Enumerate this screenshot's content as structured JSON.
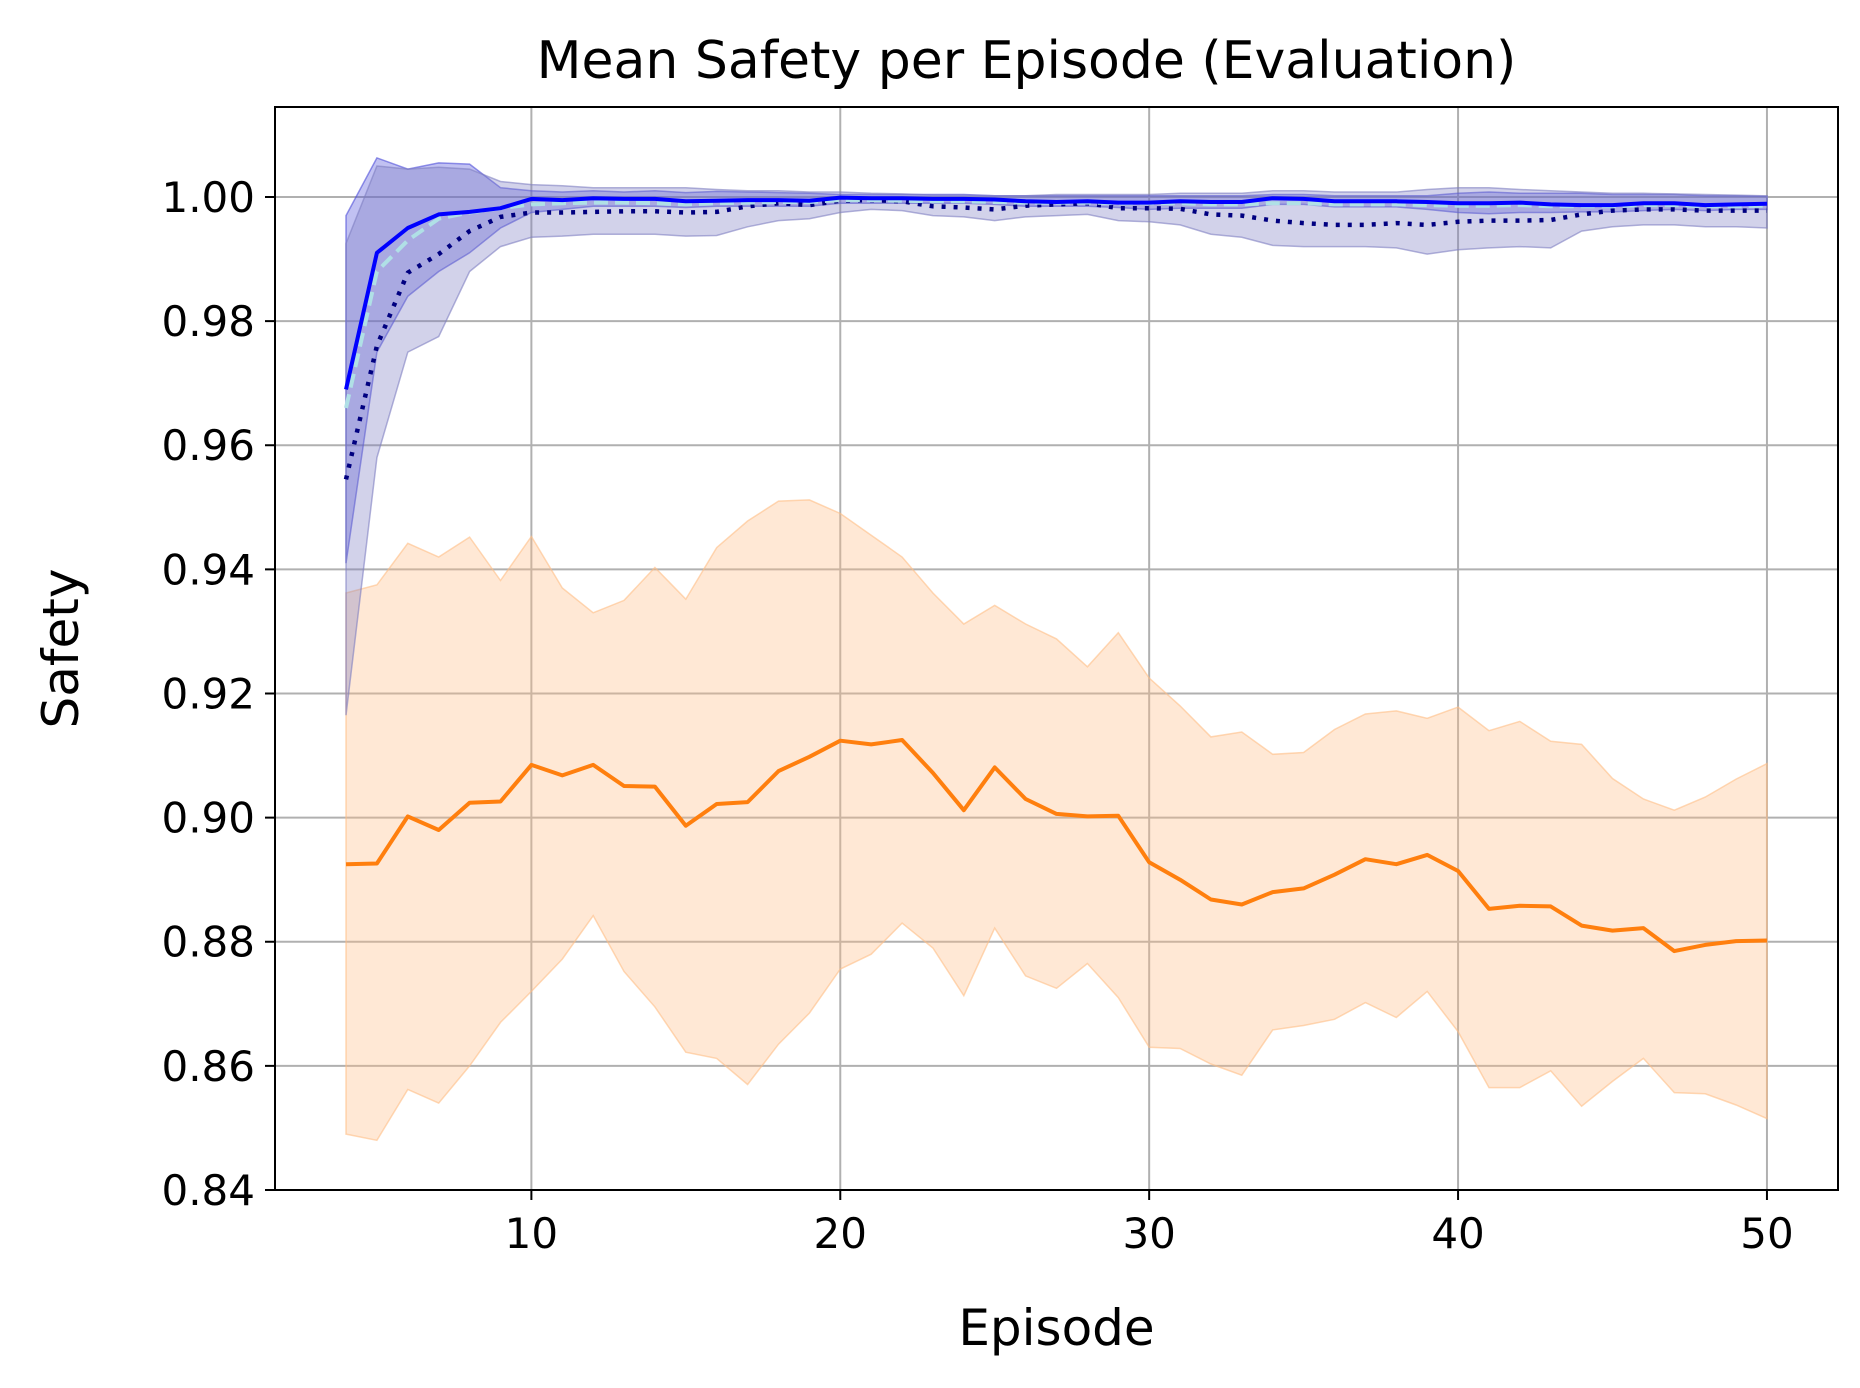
{
  "chart_data": {
    "type": "line",
    "title": "Mean Safety per Episode (Evaluation)",
    "xlabel": "Episode",
    "ylabel": "Safety",
    "xlim": [
      1.7,
      52.3
    ],
    "ylim": [
      0.84,
      1.0145
    ],
    "grid": true,
    "x_ticks": [
      10,
      20,
      30,
      40,
      50
    ],
    "x_tick_labels": [
      "10",
      "20",
      "30",
      "40",
      "50"
    ],
    "y_ticks": [
      0.84,
      0.86,
      0.88,
      0.9,
      0.92,
      0.94,
      0.96,
      0.98,
      1.0
    ],
    "y_tick_labels": [
      "0.84",
      "0.86",
      "0.88",
      "0.90",
      "0.92",
      "0.94",
      "0.96",
      "0.98",
      "1.00"
    ],
    "x": [
      4,
      5,
      6,
      7,
      8,
      9,
      10,
      11,
      12,
      13,
      14,
      15,
      16,
      17,
      18,
      19,
      20,
      21,
      22,
      23,
      24,
      25,
      26,
      27,
      28,
      29,
      30,
      31,
      32,
      33,
      34,
      35,
      36,
      37,
      38,
      39,
      40,
      41,
      42,
      43,
      44,
      45,
      46,
      47,
      48,
      49,
      50
    ],
    "series": [
      {
        "name": "orange",
        "color": "#ff7f0e",
        "band_color": "#ffbe86",
        "style": "solid",
        "values": [
          0.8925,
          0.8926,
          0.9002,
          0.898,
          0.9024,
          0.9026,
          0.9085,
          0.9068,
          0.9085,
          0.9051,
          0.905,
          0.8987,
          0.9022,
          0.9025,
          0.9075,
          0.9098,
          0.9124,
          0.9118,
          0.9125,
          0.9072,
          0.9012,
          0.9081,
          0.903,
          0.9006,
          0.9002,
          0.9003,
          0.8928,
          0.89,
          0.8868,
          0.886,
          0.888,
          0.8886,
          0.8908,
          0.8933,
          0.8925,
          0.894,
          0.8914,
          0.8853,
          0.8858,
          0.8857,
          0.8826,
          0.8818,
          0.8822,
          0.8785,
          0.8795,
          0.8801,
          0.8802
        ],
        "upper": [
          0.9362,
          0.9375,
          0.9442,
          0.942,
          0.9452,
          0.9382,
          0.9453,
          0.937,
          0.933,
          0.935,
          0.9403,
          0.9352,
          0.9435,
          0.9478,
          0.951,
          0.9512,
          0.949,
          0.9455,
          0.942,
          0.9362,
          0.9312,
          0.9342,
          0.9312,
          0.9288,
          0.9243,
          0.9298,
          0.9225,
          0.918,
          0.913,
          0.9138,
          0.9102,
          0.9105,
          0.9142,
          0.9167,
          0.9172,
          0.916,
          0.9178,
          0.914,
          0.9155,
          0.9123,
          0.9118,
          0.9063,
          0.903,
          0.9012,
          0.9033,
          0.9062,
          0.9087
        ],
        "lower": [
          0.849,
          0.848,
          0.8562,
          0.854,
          0.86,
          0.867,
          0.872,
          0.8772,
          0.8842,
          0.8752,
          0.8695,
          0.8622,
          0.8612,
          0.857,
          0.8635,
          0.8685,
          0.8756,
          0.878,
          0.883,
          0.879,
          0.8713,
          0.8822,
          0.8745,
          0.8725,
          0.8765,
          0.871,
          0.863,
          0.8628,
          0.8603,
          0.8585,
          0.8658,
          0.8665,
          0.8675,
          0.8702,
          0.8678,
          0.872,
          0.8655,
          0.8565,
          0.8565,
          0.8592,
          0.8535,
          0.8575,
          0.8612,
          0.8557,
          0.8555,
          0.8537,
          0.8515
        ]
      },
      {
        "name": "blue solid",
        "color": "#0000ff",
        "band_color": "#4d4dd9",
        "style": "solid",
        "values": [
          0.969,
          0.991,
          0.995,
          0.9972,
          0.9976,
          0.9982,
          0.9997,
          0.9995,
          0.9998,
          0.9997,
          0.9997,
          0.9993,
          0.9994,
          0.9995,
          0.9995,
          0.9994,
          0.9999,
          0.9998,
          0.9998,
          0.9997,
          0.9997,
          0.9996,
          0.9993,
          0.9992,
          0.9993,
          0.9991,
          0.9991,
          0.9993,
          0.9992,
          0.9992,
          0.9998,
          0.9997,
          0.9993,
          0.9993,
          0.9993,
          0.9992,
          0.999,
          0.999,
          0.9991,
          0.9988,
          0.9987,
          0.9987,
          0.999,
          0.999,
          0.9987,
          0.9988,
          0.9989
        ],
        "upper": [
          0.997,
          1.0063,
          1.0045,
          1.0055,
          1.0053,
          1.0015,
          1.001,
          1.0008,
          1.001,
          1.0008,
          1.001,
          1.0007,
          1.0009,
          1.0008,
          1.0007,
          1.0006,
          1.0004,
          1.0004,
          1.0004,
          1.0004,
          1.0004,
          1.0002,
          1.0002,
          1.0002,
          1.0002,
          1.0002,
          1.0002,
          1.0002,
          1.0002,
          1.0002,
          1.0004,
          1.0004,
          1.0002,
          1.0002,
          1.0002,
          1.0002,
          1.0006,
          1.0008,
          1.0006,
          1.0006,
          1.0006,
          1.0004,
          1.0004,
          1.0004,
          1.0002,
          1.0002,
          1.0001
        ],
        "lower": [
          0.941,
          0.975,
          0.984,
          0.988,
          0.991,
          0.995,
          0.9975,
          0.998,
          0.9985,
          0.9985,
          0.9985,
          0.9983,
          0.9985,
          0.9985,
          0.9985,
          0.9985,
          0.999,
          0.999,
          0.999,
          0.999,
          0.999,
          0.9988,
          0.9985,
          0.9985,
          0.9985,
          0.9983,
          0.998,
          0.9982,
          0.9982,
          0.9982,
          0.9988,
          0.9988,
          0.9984,
          0.9984,
          0.9984,
          0.998,
          0.9975,
          0.9973,
          0.9975,
          0.9975,
          0.9976,
          0.9976,
          0.9978,
          0.998,
          0.9978,
          0.998,
          0.998
        ]
      },
      {
        "name": "navy dotted",
        "color": "#000080",
        "band_color": "#7f7fc2",
        "style": "dotted",
        "values": [
          0.9545,
          0.976,
          0.9878,
          0.9908,
          0.9945,
          0.9968,
          0.9975,
          0.9975,
          0.9976,
          0.9977,
          0.9977,
          0.9975,
          0.9976,
          0.9985,
          0.999,
          0.9987,
          0.9994,
          0.9995,
          0.9993,
          0.9985,
          0.9983,
          0.998,
          0.9986,
          0.9988,
          0.999,
          0.9982,
          0.9982,
          0.9981,
          0.9972,
          0.997,
          0.9962,
          0.9958,
          0.9955,
          0.9955,
          0.9958,
          0.9955,
          0.996,
          0.9962,
          0.9962,
          0.9963,
          0.9972,
          0.9978,
          0.998,
          0.998,
          0.9978,
          0.9978,
          0.9978
        ],
        "upper": [
          0.9925,
          1.005,
          1.0045,
          1.0048,
          1.0045,
          1.0025,
          1.002,
          1.0018,
          1.0015,
          1.0015,
          1.0015,
          1.0015,
          1.0012,
          1.001,
          1.001,
          1.0008,
          1.0008,
          1.0006,
          1.0005,
          1.0003,
          1.0003,
          1.0002,
          1.0002,
          1.0004,
          1.0004,
          1.0004,
          1.0004,
          1.0006,
          1.0006,
          1.0006,
          1.001,
          1.001,
          1.0008,
          1.0008,
          1.0008,
          1.0012,
          1.0015,
          1.0015,
          1.0012,
          1.001,
          1.0008,
          1.0006,
          1.0006,
          1.0005,
          1.0004,
          1.0003,
          1.0002
        ],
        "lower": [
          0.9165,
          0.958,
          0.975,
          0.9775,
          0.988,
          0.992,
          0.9935,
          0.9937,
          0.994,
          0.994,
          0.994,
          0.9937,
          0.9938,
          0.9952,
          0.9962,
          0.9965,
          0.9975,
          0.998,
          0.9978,
          0.997,
          0.9968,
          0.9962,
          0.9968,
          0.997,
          0.9972,
          0.9962,
          0.996,
          0.9955,
          0.994,
          0.9935,
          0.9922,
          0.992,
          0.992,
          0.992,
          0.9918,
          0.9908,
          0.9915,
          0.9918,
          0.992,
          0.9918,
          0.9945,
          0.9952,
          0.9955,
          0.9955,
          0.9952,
          0.9952,
          0.995
        ]
      },
      {
        "name": "light cyan dashed",
        "color": "#b0e0e6",
        "style": "dashed",
        "values": [
          0.966,
          0.988,
          0.993,
          0.9965,
          0.9975,
          0.9982,
          0.9988,
          0.999,
          0.9991,
          0.9991,
          0.999,
          0.9988,
          0.999,
          0.9991,
          0.9992,
          0.9992,
          0.9995,
          0.9995,
          0.9994,
          0.9993,
          0.9993,
          0.9992,
          0.9991,
          0.9991,
          0.9991,
          0.999,
          0.999,
          0.999,
          0.9988,
          0.9988,
          0.999,
          0.999,
          0.9988,
          0.9988,
          0.9988,
          0.9987,
          0.9986,
          0.9986,
          0.9987,
          0.9985,
          0.9985,
          0.9985,
          0.9987,
          0.9987,
          0.9985,
          0.9985,
          0.9986
        ]
      }
    ]
  }
}
